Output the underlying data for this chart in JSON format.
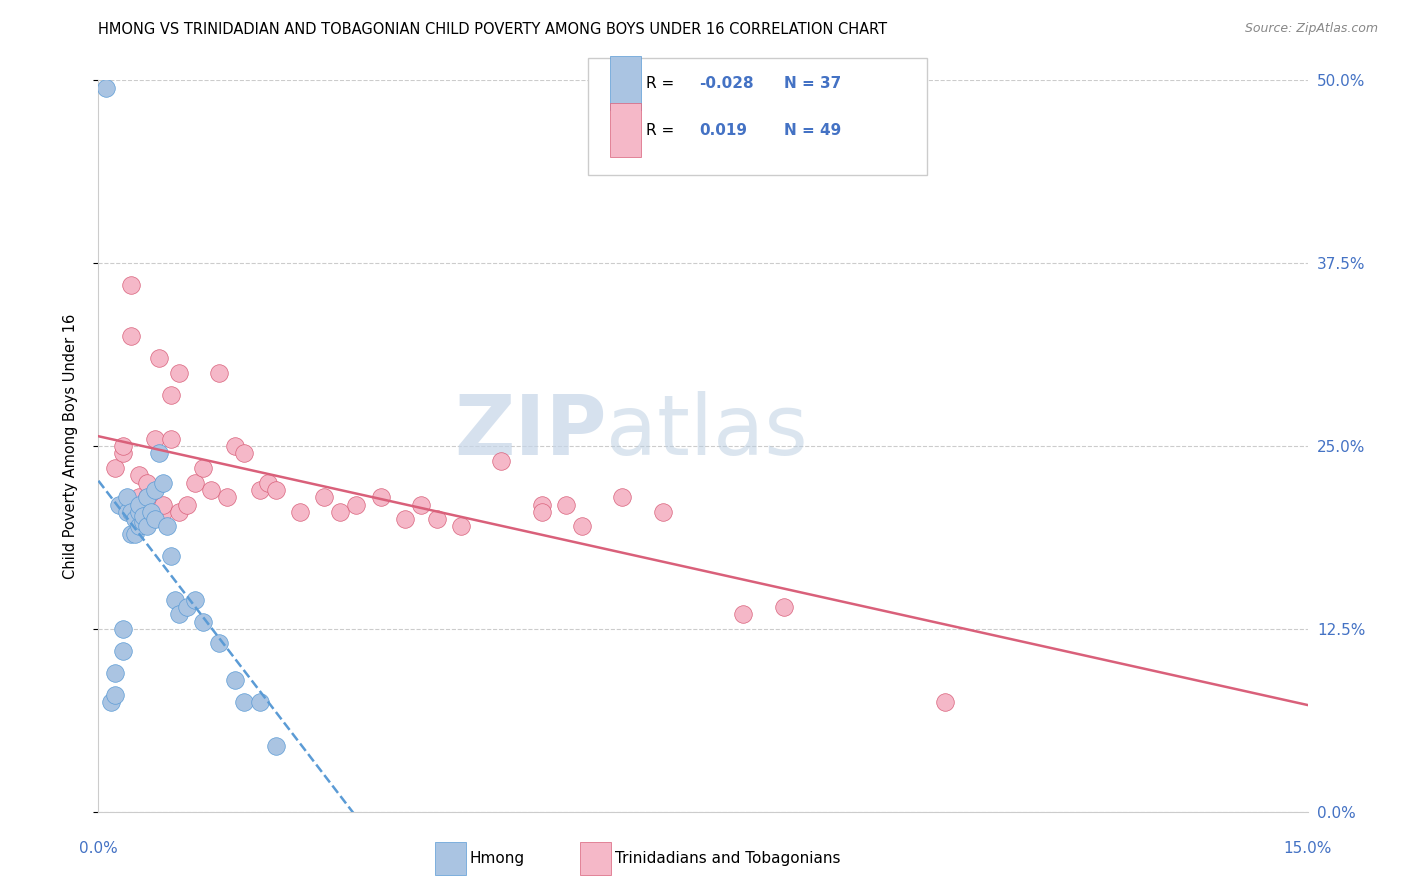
{
  "title": "HMONG VS TRINIDADIAN AND TOBAGONIAN CHILD POVERTY AMONG BOYS UNDER 16 CORRELATION CHART",
  "source": "Source: ZipAtlas.com",
  "ylabel": "Child Poverty Among Boys Under 16",
  "ytick_vals": [
    0.0,
    12.5,
    25.0,
    37.5,
    50.0
  ],
  "xlim": [
    0.0,
    15.0
  ],
  "ylim": [
    0.0,
    50.0
  ],
  "watermark_zip": "ZIP",
  "watermark_atlas": "atlas",
  "legend_hmong_R": "-0.028",
  "legend_hmong_N": "37",
  "legend_trint_R": "0.019",
  "legend_trint_N": "49",
  "blue_color": "#aac4e2",
  "pink_color": "#f5b8c8",
  "line_blue_color": "#5b9bd5",
  "line_pink_color": "#d9607a",
  "hmong_x": [
    0.15,
    0.2,
    0.2,
    0.25,
    0.3,
    0.3,
    0.35,
    0.35,
    0.4,
    0.4,
    0.45,
    0.45,
    0.5,
    0.5,
    0.5,
    0.55,
    0.55,
    0.6,
    0.6,
    0.65,
    0.7,
    0.7,
    0.75,
    0.8,
    0.85,
    0.9,
    0.95,
    1.0,
    1.1,
    1.2,
    1.3,
    1.5,
    1.7,
    1.8,
    2.0,
    2.2,
    0.1
  ],
  "hmong_y": [
    7.5,
    8.0,
    9.5,
    21.0,
    11.0,
    12.5,
    20.5,
    21.5,
    19.0,
    20.5,
    19.0,
    20.0,
    19.5,
    20.5,
    21.0,
    19.8,
    20.2,
    19.5,
    21.5,
    20.5,
    20.0,
    22.0,
    24.5,
    22.5,
    19.5,
    17.5,
    14.5,
    13.5,
    14.0,
    14.5,
    13.0,
    11.5,
    9.0,
    7.5,
    7.5,
    4.5,
    49.5
  ],
  "trint_x": [
    0.2,
    0.3,
    0.3,
    0.4,
    0.4,
    0.5,
    0.5,
    0.55,
    0.6,
    0.6,
    0.65,
    0.7,
    0.75,
    0.8,
    0.8,
    0.9,
    0.9,
    1.0,
    1.0,
    1.1,
    1.2,
    1.3,
    1.4,
    1.5,
    1.6,
    1.7,
    1.8,
    2.0,
    2.1,
    2.2,
    2.5,
    2.8,
    3.0,
    3.2,
    3.5,
    3.8,
    4.0,
    4.2,
    4.5,
    5.0,
    5.5,
    6.0,
    6.5,
    7.0,
    8.0,
    8.5,
    10.5,
    5.5,
    5.8
  ],
  "trint_y": [
    23.5,
    24.5,
    25.0,
    32.5,
    36.0,
    21.5,
    23.0,
    20.5,
    21.5,
    22.5,
    21.0,
    25.5,
    31.0,
    20.5,
    21.0,
    25.5,
    28.5,
    20.5,
    30.0,
    21.0,
    22.5,
    23.5,
    22.0,
    30.0,
    21.5,
    25.0,
    24.5,
    22.0,
    22.5,
    22.0,
    20.5,
    21.5,
    20.5,
    21.0,
    21.5,
    20.0,
    21.0,
    20.0,
    19.5,
    24.0,
    21.0,
    19.5,
    21.5,
    20.5,
    13.5,
    14.0,
    7.5,
    20.5,
    21.0
  ]
}
